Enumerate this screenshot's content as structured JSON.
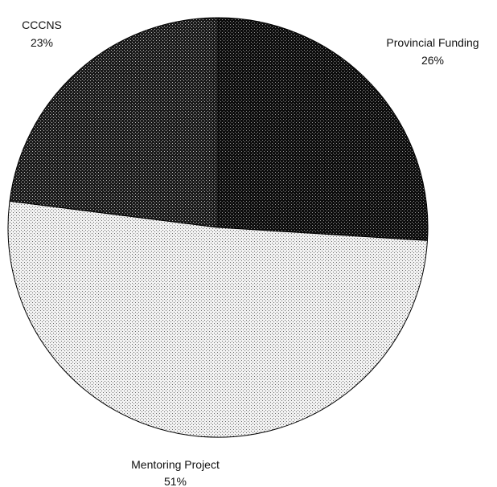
{
  "chart_data": {
    "type": "pie",
    "title": "",
    "slices": [
      {
        "label": "Provincial Funding",
        "value": 26,
        "percent_label": "26%",
        "color": "#0d0d0d",
        "dot_color": "#ffffff",
        "dot_opacity": 0.55
      },
      {
        "label": "Mentoring Project",
        "value": 51,
        "percent_label": "51%",
        "color": "#f2f2f2",
        "dot_color": "#000000",
        "dot_opacity": 0.55
      },
      {
        "label": "CCCNS",
        "value": 23,
        "percent_label": "23%",
        "color": "#1a1a1a",
        "dot_color": "#ffffff",
        "dot_opacity": 0.7
      }
    ],
    "start_angle_deg": 0,
    "direction": "clockwise",
    "legend": "none"
  }
}
